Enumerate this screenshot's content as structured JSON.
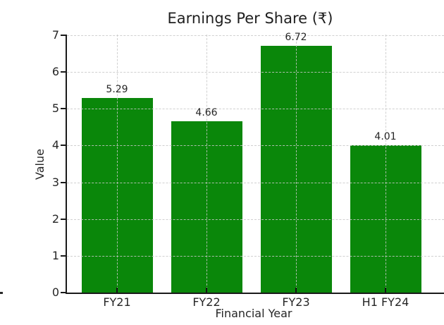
{
  "chart_data": {
    "type": "bar",
    "title": "Earnings Per Share (₹)",
    "xlabel": "Financial Year",
    "ylabel": "Value",
    "categories": [
      "FY21",
      "FY22",
      "FY23",
      "H1 FY24"
    ],
    "values": [
      5.29,
      4.66,
      6.72,
      4.01
    ],
    "value_labels": [
      "5.29",
      "4.66",
      "6.72",
      "4.01"
    ],
    "ylim": [
      0,
      7
    ],
    "yticks": [
      0,
      1,
      2,
      3,
      4,
      5,
      6,
      7
    ],
    "ytick_labels": [
      "0",
      "1",
      "2",
      "3",
      "4",
      "5",
      "6",
      "7"
    ],
    "grid": "dashed gridlines on both axes, drawn over bars",
    "legend": "none",
    "colors": {
      "bar_fill": "#0a870a",
      "background": "#ffffff",
      "grid_line": "#c8c8c8",
      "axis_spine": "#1a1a1a",
      "text": "#262626"
    }
  }
}
